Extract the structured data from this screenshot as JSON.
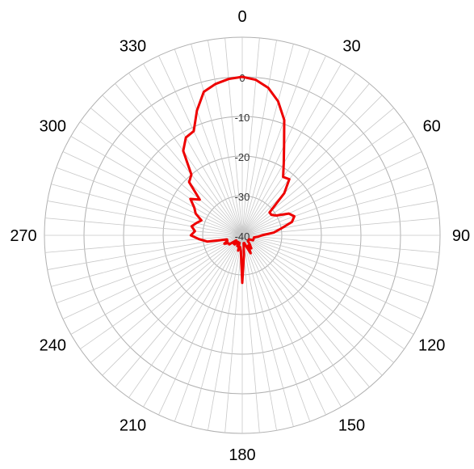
{
  "chart_data": {
    "type": "polar-line",
    "title": "",
    "angle_ticks": [
      {
        "angle": 0,
        "label": "0"
      },
      {
        "angle": 30,
        "label": "30"
      },
      {
        "angle": 60,
        "label": "60"
      },
      {
        "angle": 90,
        "label": "90"
      },
      {
        "angle": 120,
        "label": "120"
      },
      {
        "angle": 150,
        "label": "150"
      },
      {
        "angle": 180,
        "label": "180"
      },
      {
        "angle": 210,
        "label": "210"
      },
      {
        "angle": 240,
        "label": "240"
      },
      {
        "angle": 270,
        "label": "270"
      },
      {
        "angle": 300,
        "label": "300"
      },
      {
        "angle": 330,
        "label": "330"
      }
    ],
    "radial_ticks": [
      {
        "value": 0,
        "label": "0"
      },
      {
        "value": -10,
        "label": "-10"
      },
      {
        "value": -20,
        "label": "-20"
      },
      {
        "value": -30,
        "label": "-30"
      },
      {
        "value": -40,
        "label": "-40"
      }
    ],
    "r_range": [
      -40,
      0
    ],
    "outer_ring_value": 10,
    "spoke_step_deg": 5,
    "grid": true,
    "series": [
      {
        "color": "#ee0000",
        "theta": [
          0,
          5,
          10,
          15,
          20,
          25,
          30,
          35,
          40,
          45,
          50,
          55,
          60,
          65,
          70,
          75,
          80,
          85,
          90,
          95,
          100,
          105,
          110,
          115,
          120,
          125,
          130,
          135,
          140,
          145,
          150,
          155,
          160,
          165,
          170,
          175,
          180,
          185,
          190,
          195,
          200,
          205,
          210,
          215,
          220,
          225,
          230,
          235,
          240,
          245,
          250,
          255,
          260,
          265,
          270,
          275,
          280,
          285,
          290,
          295,
          300,
          305,
          310,
          315,
          320,
          325,
          330,
          335,
          340,
          345,
          350,
          355
        ],
        "r": [
          0,
          -0.6,
          -2.2,
          -5,
          -9,
          -15,
          -19,
          -22,
          -21.5,
          -25,
          -31,
          -31,
          -30,
          -27,
          -26,
          -27,
          -30,
          -32,
          -35,
          -36,
          -37,
          -37,
          -37,
          -37,
          -38,
          -38,
          -38,
          -38,
          -37,
          -36,
          -37,
          -35,
          -37,
          -38,
          -38,
          -35,
          -28,
          -36,
          -37,
          -36,
          -38,
          -37,
          -38,
          -38,
          -37,
          -37,
          -38,
          -36,
          -36,
          -35,
          -36,
          -36,
          -31,
          -29,
          -27,
          -28,
          -27,
          -28,
          -29,
          -27,
          -26,
          -24,
          -26,
          -21,
          -20,
          -14,
          -11.5,
          -11,
          -6.5,
          -2.5,
          -1.2,
          -0.4
        ]
      }
    ]
  }
}
